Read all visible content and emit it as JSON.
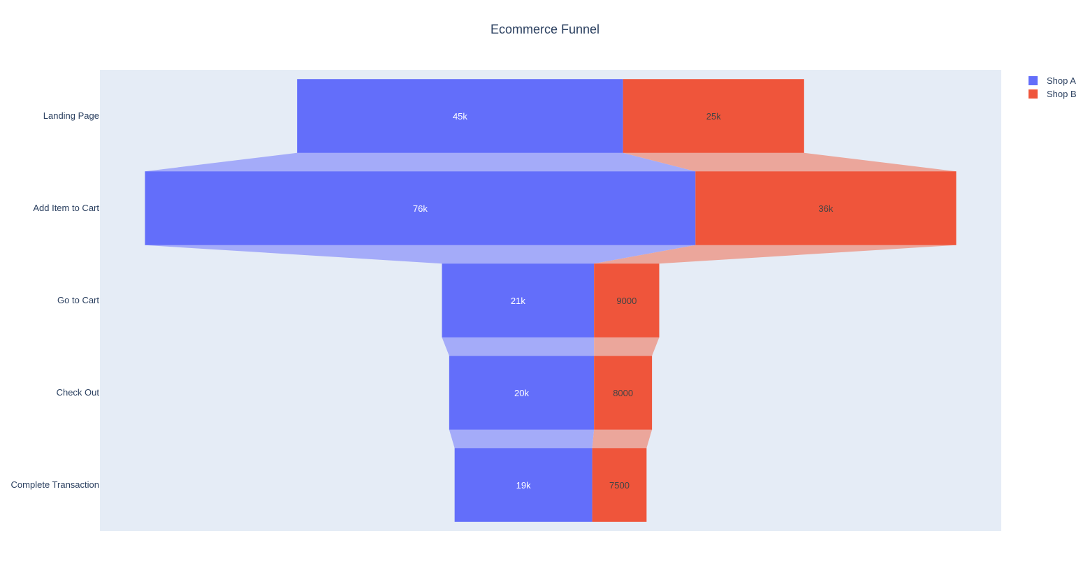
{
  "chart_data": {
    "type": "funnel",
    "title": "Ecommerce Funnel",
    "categories": [
      "Landing Page",
      "Add Item to Cart",
      "Go to Cart",
      "Check Out",
      "Complete Transaction"
    ],
    "series": [
      {
        "name": "Shop A",
        "color": "#636efa",
        "connector_color": "#a4abf9",
        "values": [
          45000,
          76000,
          21000,
          20000,
          19000
        ],
        "labels": [
          "45k",
          "76k",
          "21k",
          "20k",
          "19k"
        ],
        "label_color": "#ffffff"
      },
      {
        "name": "Shop B",
        "color": "#ef553b",
        "connector_color": "#eba69b",
        "values": [
          25000,
          36000,
          9000,
          8000,
          7500
        ],
        "labels": [
          "25k",
          "36k",
          "9000",
          "8000",
          "7500"
        ],
        "label_color": "#444444"
      }
    ],
    "plot_background": "#e5ecf6",
    "legend_position": "top-right"
  }
}
